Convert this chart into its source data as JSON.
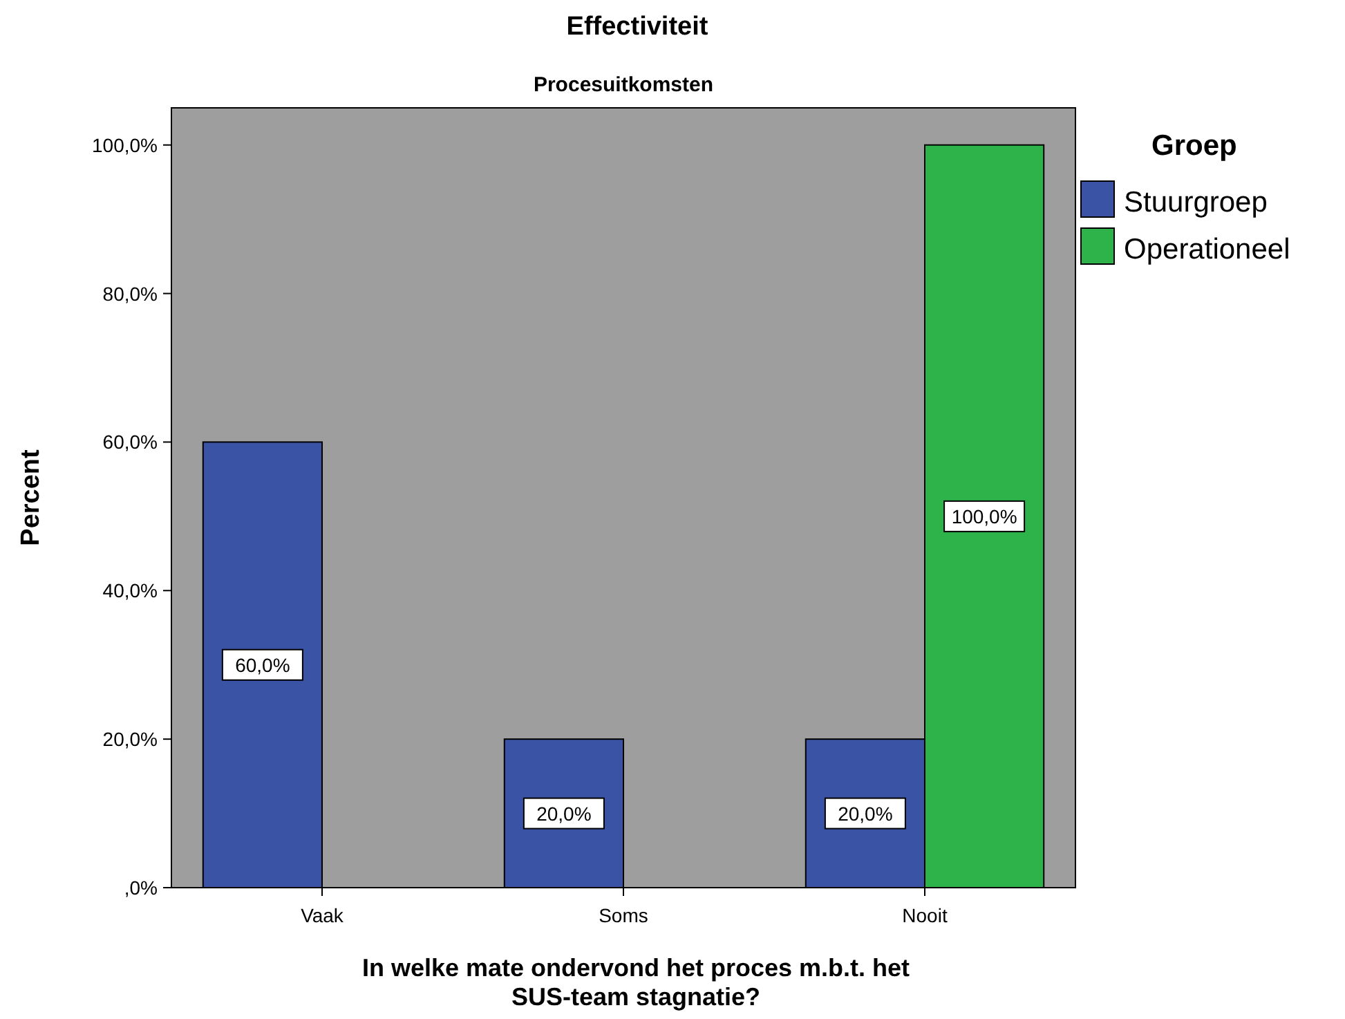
{
  "chart_data": {
    "type": "bar",
    "title": "Effectiviteit",
    "subtitle": "Procesuitkomsten",
    "xlabel": "In welke mate ondervond het proces m.b.t. het\nSUS-team stagnatie?",
    "ylabel": "Percent",
    "legend_title": "Groep",
    "categories": [
      "Vaak",
      "Soms",
      "Nooit"
    ],
    "series": [
      {
        "name": "Stuurgroep",
        "color": "#3a53a4",
        "values": [
          60,
          20,
          20
        ],
        "value_labels": [
          "60,0%",
          "20,0%",
          "20,0%"
        ]
      },
      {
        "name": "Operationeel",
        "color": "#2db34a",
        "values": [
          0,
          0,
          100
        ],
        "value_labels": [
          null,
          null,
          "100,0%"
        ]
      }
    ],
    "ylim": [
      0,
      105
    ],
    "yticks": [
      {
        "value": 0,
        "label": ",0%"
      },
      {
        "value": 20,
        "label": "20,0%"
      },
      {
        "value": 40,
        "label": "40,0%"
      },
      {
        "value": 60,
        "label": "60,0%"
      },
      {
        "value": 80,
        "label": "80,0%"
      },
      {
        "value": 100,
        "label": "100,0%"
      }
    ],
    "grid": false,
    "legend": "right"
  }
}
